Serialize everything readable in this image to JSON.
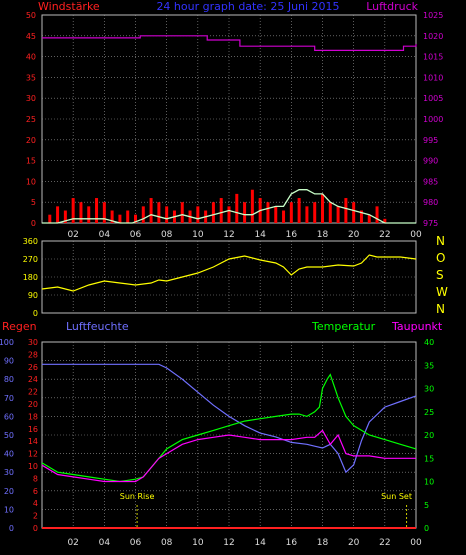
{
  "header": {
    "left": "Windstärke",
    "center": "24 hour graph date: 25 Juni 2015",
    "right": "Luftdruck"
  },
  "time_labels": [
    "02",
    "04",
    "06",
    "08",
    "10",
    "12",
    "14",
    "16",
    "18",
    "20",
    "22",
    "00"
  ],
  "colors": {
    "background": "#000000",
    "grid": "#9a9a9a",
    "wind_axis": "#ff2020",
    "pressure_axis": "#d000d0",
    "title": "#3333ff",
    "wind_speed": "#ff0000",
    "wind_gust": "#c8ffc8",
    "wind_direction": "#ffff00",
    "pressure": "#d000d0",
    "rain": "#ff2020",
    "humidity": "#7070ff",
    "temperature": "#00ff00",
    "dewpoint": "#ff00ff",
    "sun": "#ffff00"
  },
  "chart_data": [
    {
      "type": "line",
      "y_left_label": "Windstärke",
      "y_right_label": "Luftdruck",
      "y_left_ticks": [
        "0",
        "5",
        "10",
        "15",
        "20",
        "25",
        "30",
        "35",
        "40",
        "45",
        "50"
      ],
      "y_right_ticks": [
        "975",
        "980",
        "985",
        "990",
        "995",
        "1000",
        "1005",
        "1010",
        "1015",
        "1020",
        "1025"
      ],
      "ylim_left": [
        0,
        50
      ],
      "ylim_right": [
        975,
        1025
      ],
      "x_range_hours": [
        0,
        24
      ],
      "series": [
        {
          "key": "pressure",
          "x": [
            0,
            5.5,
            6.3,
            10.6,
            12.7,
            17.5,
            21.8,
            23.2,
            24
          ],
          "y": [
            1019.5,
            1019.5,
            1020,
            1019,
            1017.5,
            1016.5,
            1016.5,
            1017.5,
            1018
          ]
        },
        {
          "key": "wind_speed",
          "x": [
            0,
            0.5,
            1,
            1.5,
            2,
            2.5,
            3,
            3.5,
            4,
            4.5,
            5,
            5.5,
            6,
            6.5,
            7,
            7.5,
            8,
            8.5,
            9,
            9.5,
            10,
            10.5,
            11,
            11.5,
            12,
            12.5,
            13,
            13.5,
            14,
            14.5,
            15,
            15.5,
            16,
            16.5,
            17,
            17.5,
            18,
            18.5,
            19,
            19.5,
            20,
            20.5,
            21,
            21.5,
            22,
            22.5,
            23,
            23.5,
            24
          ],
          "y": [
            0,
            2,
            4,
            3,
            6,
            5,
            4,
            6,
            5,
            3,
            2,
            3,
            2,
            4,
            6,
            5,
            4,
            3,
            5,
            3,
            4,
            3,
            5,
            6,
            4,
            7,
            5,
            8,
            6,
            5,
            4,
            3,
            5,
            6,
            4,
            5,
            7,
            5,
            4,
            6,
            5,
            3,
            2,
            4,
            1,
            0,
            0,
            0,
            0
          ]
        },
        {
          "key": "wind_gust",
          "x": [
            0,
            1,
            2,
            3,
            4,
            5,
            5.8,
            6.5,
            7,
            8,
            9,
            10,
            11,
            12,
            13,
            13.5,
            14,
            15,
            15.5,
            16,
            16.5,
            17,
            17.5,
            18,
            18.5,
            19,
            20,
            21,
            21.5,
            22,
            23,
            24
          ],
          "y": [
            0,
            0,
            1,
            1,
            1,
            0,
            0,
            1,
            2,
            1,
            2,
            1,
            2,
            3,
            2,
            2,
            3,
            4,
            4,
            7,
            8,
            8,
            7,
            7,
            5,
            4,
            3,
            2,
            1,
            0,
            0,
            0
          ]
        }
      ]
    },
    {
      "type": "line",
      "y_left_ticks": [
        "0",
        "90",
        "180",
        "270",
        "360"
      ],
      "y_right_ticks": [
        "N",
        "W",
        "S",
        "O",
        "N"
      ],
      "ylim_left": [
        0,
        360
      ],
      "x_range_hours": [
        0,
        24
      ],
      "series": [
        {
          "key": "wind_direction",
          "x": [
            0,
            1,
            2,
            3,
            4,
            5,
            6,
            7,
            7.5,
            8,
            9,
            10,
            11,
            12,
            13,
            14,
            15,
            15.5,
            16,
            16.5,
            17,
            17.5,
            18,
            19,
            20,
            20.5,
            21,
            21.5,
            22,
            23,
            24
          ],
          "y": [
            120,
            130,
            110,
            140,
            160,
            150,
            140,
            150,
            165,
            160,
            180,
            200,
            230,
            270,
            285,
            265,
            250,
            230,
            190,
            220,
            230,
            230,
            230,
            240,
            235,
            250,
            290,
            280,
            280,
            280,
            270
          ]
        }
      ]
    },
    {
      "type": "line",
      "legend_left": [
        "Regen",
        "Luftfeuchte"
      ],
      "legend_right": [
        "Temperatur",
        "Taupunkt"
      ],
      "y_rain_ticks": [
        "0",
        "2",
        "4",
        "6",
        "8",
        "10",
        "12",
        "14",
        "16",
        "18",
        "20",
        "22",
        "24",
        "26",
        "28",
        "30"
      ],
      "y_humidity_ticks": [
        "0",
        "10",
        "20",
        "30",
        "40",
        "50",
        "60",
        "70",
        "80",
        "90",
        "100"
      ],
      "y_temp_ticks": [
        "0",
        "5",
        "10",
        "15",
        "20",
        "25",
        "30",
        "35",
        "40"
      ],
      "ylim_temp": [
        0,
        40
      ],
      "ylim_humidity": [
        0,
        100
      ],
      "ylim_rain": [
        0,
        30
      ],
      "x_range_hours": [
        0,
        24
      ],
      "annotations": [
        {
          "label": "Sun Rise",
          "hour": 6.1
        },
        {
          "label": "Sun Set",
          "hour": 23.4
        }
      ],
      "series": [
        {
          "key": "humidity",
          "x": [
            0,
            1,
            2,
            3,
            4,
            5,
            6,
            7,
            7.5,
            8,
            9,
            10,
            11,
            12,
            13,
            14,
            15,
            16,
            17,
            17.5,
            18,
            18.5,
            19,
            19.5,
            20,
            20.5,
            21,
            22,
            23,
            24
          ],
          "y": [
            88,
            88,
            88,
            88,
            88,
            88,
            88,
            88,
            88,
            86,
            80,
            73,
            66,
            60,
            55,
            51,
            49,
            46,
            45,
            44,
            43,
            45,
            40,
            30,
            34,
            47,
            57,
            65,
            68,
            71
          ]
        },
        {
          "key": "temperature",
          "x": [
            0,
            1,
            2,
            3,
            4,
            5,
            6,
            6.5,
            7,
            7.5,
            8,
            9,
            10,
            11,
            12,
            13,
            14,
            15,
            16,
            16.5,
            17,
            17.5,
            17.8,
            18,
            18.3,
            18.5,
            18.8,
            19,
            19.5,
            20,
            21,
            22,
            23,
            24
          ],
          "y": [
            14,
            12,
            11.5,
            11,
            10.5,
            10,
            10.5,
            11,
            13,
            15,
            17,
            19,
            20,
            21,
            22,
            23,
            23.5,
            24,
            24.5,
            24.5,
            24,
            25,
            26,
            30,
            32,
            33,
            30,
            28,
            24,
            22,
            20,
            19,
            18,
            17
          ]
        },
        {
          "key": "dewpoint",
          "x": [
            0,
            1,
            2,
            3,
            4,
            5,
            6,
            6.5,
            7,
            7.5,
            8,
            9,
            10,
            11,
            12,
            13,
            14,
            15,
            16,
            17,
            17.5,
            18,
            18.5,
            19,
            19.5,
            20,
            21,
            22,
            23,
            24
          ],
          "y": [
            13.5,
            11.5,
            11,
            10.5,
            10,
            10,
            10,
            11,
            13,
            15,
            16,
            18,
            19,
            19.5,
            20,
            19.5,
            19,
            19,
            19,
            19.5,
            19.5,
            21,
            18,
            20,
            16,
            15.5,
            15.5,
            15,
            15,
            15
          ]
        },
        {
          "key": "rain",
          "x": [
            0,
            24
          ],
          "y": [
            0,
            0
          ]
        }
      ]
    }
  ]
}
